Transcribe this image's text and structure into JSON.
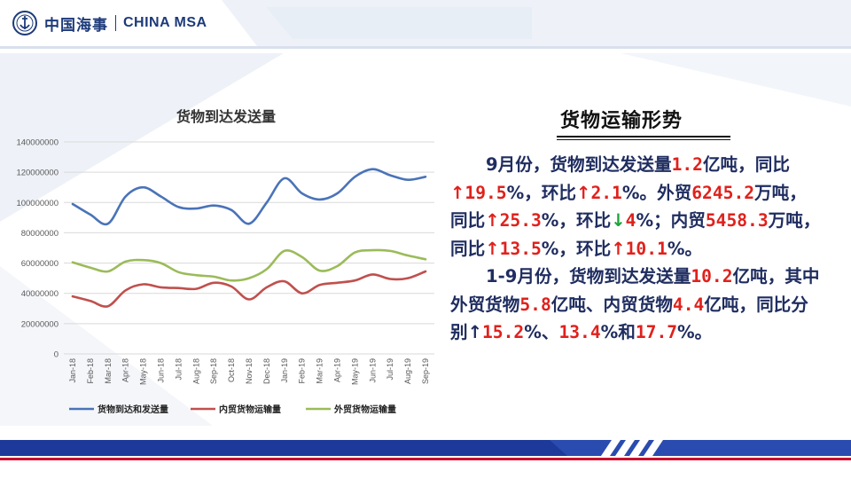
{
  "header": {
    "logo_cn": "中国海事",
    "logo_en": "CHINA MSA"
  },
  "colors": {
    "brand_blue": "#1d3a7a",
    "series_blue": "#4a73b8",
    "series_red": "#c0504d",
    "series_green": "#9bbb59",
    "accent_red": "#e0211c",
    "down_green": "#1aa33a",
    "text_navy": "#1f2d60"
  },
  "chart_data": {
    "type": "line",
    "title": "货物到达发送量",
    "categories": [
      "Jan-18",
      "Feb-18",
      "Mar-18",
      "Apr-18",
      "May-18",
      "Jun-18",
      "Jul-18",
      "Aug-18",
      "Sep-18",
      "Oct-18",
      "Nov-18",
      "Dec-18",
      "Jan-19",
      "Feb-19",
      "Mar-19",
      "Apr-19",
      "May-19",
      "Jun-19",
      "Jul-19",
      "Aug-19",
      "Sep-19"
    ],
    "series": [
      {
        "name": "货物到达和发送量",
        "values": [
          99000000,
          92000000,
          86000000,
          104000000,
          110000000,
          104000000,
          97000000,
          96000000,
          98000000,
          95000000,
          86000000,
          100000000,
          116000000,
          106000000,
          102000000,
          106000000,
          117000000,
          122000000,
          118000000,
          115000000,
          117000000
        ]
      },
      {
        "name": "内贸货物运输量",
        "values": [
          38000000,
          35000000,
          31500000,
          42000000,
          46000000,
          44000000,
          43500000,
          43000000,
          47000000,
          44500000,
          36000000,
          44000000,
          48000000,
          40000000,
          45500000,
          47000000,
          48500000,
          52500000,
          49500000,
          50000000,
          54500000
        ]
      },
      {
        "name": "外贸货物运输量",
        "values": [
          60500000,
          57000000,
          54500000,
          61000000,
          62000000,
          60000000,
          54000000,
          52000000,
          51000000,
          48500000,
          50000000,
          56000000,
          68000000,
          64000000,
          55000000,
          58000000,
          67000000,
          68500000,
          68000000,
          65000000,
          62500000
        ]
      }
    ],
    "yticks": [
      "140000000",
      "120000000",
      "100000000",
      "80000000",
      "60000000",
      "40000000",
      "20000000",
      "0"
    ],
    "ylim": [
      0,
      140000000
    ],
    "grid": true,
    "legend_position": "bottom"
  },
  "section_title": "货物运输形势",
  "text": {
    "p1_a": "9月份，货物到达发送量",
    "p1_v1": "1.2",
    "p1_b": "亿吨，同比",
    "p1_arrow1": "↑",
    "p1_v2": "19.5",
    "p1_c": "%，环比",
    "p1_arrow2": "↑",
    "p1_v3": "2.1",
    "p1_d": "%。外贸",
    "p1_v4": "6245.2",
    "p1_e": "万吨，同比",
    "p1_arrow3": "↑",
    "p1_v5": "25.3",
    "p1_f": "%，环比",
    "p1_arrow4": "↓",
    "p1_v6": "4",
    "p1_g": "%；内贸",
    "p1_v7": "5458.3",
    "p1_h": "万吨，同比",
    "p1_arrow5": "↑",
    "p1_v8": "13.5",
    "p1_i": "%，环比",
    "p1_arrow6": "↑",
    "p1_v9": "10.1",
    "p1_j": "%。",
    "p2_a": "1-9月份，货物到达发送量",
    "p2_v1": "10.2",
    "p2_b": "亿吨，其中外贸货物",
    "p2_v2": "5.8",
    "p2_c": "亿吨、内贸货物",
    "p2_v3": "4.4",
    "p2_d": "亿吨，同比分别",
    "p2_arrow1": "↑",
    "p2_v4": "15.2",
    "p2_e": "%、",
    "p2_v5": "13.4",
    "p2_f": "%和",
    "p2_v6": "17.7",
    "p2_g": "%。"
  }
}
